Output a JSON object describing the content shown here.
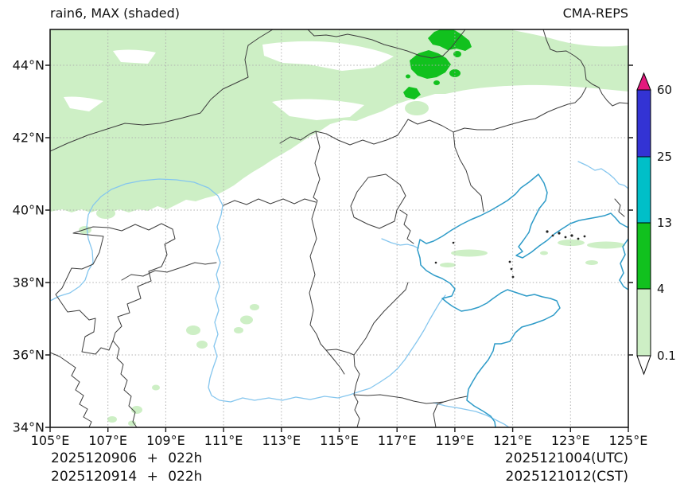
{
  "title_left": "rain6, MAX (shaded)",
  "title_right": "CMA-REPS",
  "axes": {
    "x_ticks": [
      "105°E",
      "107°E",
      "109°E",
      "111°E",
      "113°E",
      "115°E",
      "117°E",
      "119°E",
      "121°E",
      "123°E",
      "125°E"
    ],
    "y_ticks": [
      "34°N",
      "36°N",
      "38°N",
      "40°N",
      "42°N",
      "44°N"
    ],
    "lon_range": [
      105,
      125
    ],
    "lat_range": [
      34,
      45
    ]
  },
  "legend": {
    "labels": [
      "60",
      "25",
      "13",
      "4",
      "0.1"
    ],
    "boundaries": [
      0.1,
      4,
      13,
      25,
      60
    ],
    "segment_colors_bottom_to_top": [
      "paleGreen",
      "green",
      "cyan",
      "blue"
    ],
    "over_color": "magenta",
    "under_color": "white"
  },
  "footer": {
    "run1": "2025120906 + 022h",
    "run2": "2025120914 + 022h",
    "valid_utc": "2025121004(UTC)",
    "valid_cst": "2025121012(CST)"
  },
  "colors": {
    "paleGreen": "#cdefc5",
    "green": "#11c11e",
    "cyan": "#00bfc8",
    "blue": "#3333d4",
    "magenta": "#e3197d",
    "coast": "#2e9bc8",
    "river": "#85c6ee",
    "border": "#3d3d3d",
    "frame": "#1a1a1a",
    "grid": "#b0b0b0",
    "text": "#111111"
  }
}
